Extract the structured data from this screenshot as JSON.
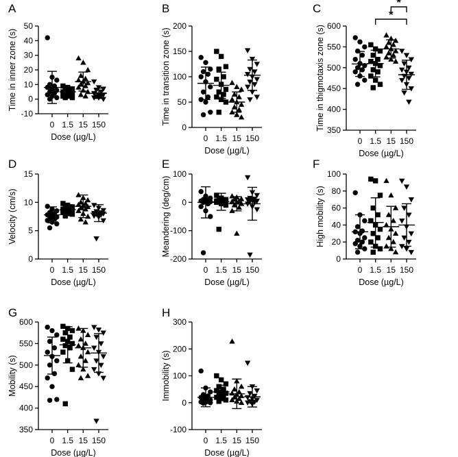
{
  "chart_data": [
    {
      "type": "scatter",
      "panel_label": "A",
      "xlabel": "Dose (µg/L)",
      "ylabel": "Time in inner zone (s)",
      "categories": [
        "0",
        "1.5",
        "15",
        "150"
      ],
      "ylim": [
        -10,
        50
      ],
      "yticks": [
        "-10",
        "0",
        "10",
        "20",
        "30",
        "40",
        "50"
      ],
      "marker_shapes": [
        "circle",
        "square",
        "triangle-up",
        "triangle-down"
      ],
      "points": [
        [
          42,
          15,
          13,
          10,
          9,
          8,
          7,
          6,
          5,
          4,
          3,
          2,
          1,
          0
        ],
        [
          9,
          8,
          7,
          6,
          5,
          5,
          4,
          4,
          3,
          3,
          2,
          2,
          1,
          1
        ],
        [
          28,
          25,
          20,
          16,
          14,
          13,
          12,
          11,
          10,
          9,
          8,
          6,
          5,
          3,
          2
        ],
        [
          12,
          8,
          7,
          6,
          5,
          4,
          3,
          3,
          2,
          2,
          1,
          1,
          0
        ]
      ],
      "mean": [
        8,
        5,
        12,
        4
      ],
      "sd": [
        11,
        3.5,
        6.5,
        3.5
      ]
    },
    {
      "type": "scatter",
      "panel_label": "B",
      "xlabel": "Dose (µg/L)",
      "ylabel": "Time in transition zone (s)",
      "categories": [
        "0",
        "1.5",
        "15",
        "150"
      ],
      "ylim": [
        0,
        200
      ],
      "yticks": [
        "0",
        "50",
        "100",
        "150",
        "200"
      ],
      "marker_shapes": [
        "circle",
        "square",
        "triangle-up",
        "triangle-down"
      ],
      "points": [
        [
          138,
          128,
          115,
          110,
          105,
          100,
          90,
          80,
          70,
          60,
          55,
          50,
          30,
          25
        ],
        [
          150,
          140,
          120,
          115,
          100,
          95,
          85,
          75,
          70,
          65,
          60,
          55,
          50,
          30
        ],
        [
          88,
          80,
          75,
          65,
          60,
          55,
          50,
          45,
          40,
          35,
          30,
          25,
          20
        ],
        [
          152,
          135,
          125,
          115,
          110,
          105,
          100,
          95,
          90,
          85,
          80,
          70,
          60,
          55
        ]
      ],
      "mean": [
        87,
        83,
        50,
        103
      ],
      "sd": [
        32,
        26,
        20,
        30
      ]
    },
    {
      "type": "scatter",
      "panel_label": "C",
      "xlabel": "Dose (µg/L)",
      "ylabel": "Time in thigmotaxis zone (s)",
      "categories": [
        "0",
        "1.5",
        "15",
        "150"
      ],
      "ylim": [
        350,
        600
      ],
      "yticks": [
        "350",
        "400",
        "450",
        "500",
        "550",
        "600"
      ],
      "marker_shapes": [
        "circle",
        "square",
        "triangle-up",
        "triangle-down"
      ],
      "points": [
        [
          572,
          562,
          550,
          540,
          530,
          520,
          510,
          505,
          500,
          495,
          490,
          480,
          470,
          460
        ],
        [
          555,
          545,
          540,
          530,
          520,
          515,
          510,
          505,
          495,
          490,
          480,
          470,
          460,
          452
        ],
        [
          578,
          570,
          565,
          560,
          555,
          550,
          545,
          540,
          535,
          530,
          525,
          520,
          515
        ],
        [
          540,
          530,
          520,
          510,
          500,
          495,
          490,
          485,
          480,
          475,
          470,
          460,
          450,
          440,
          418
        ]
      ],
      "mean": [
        509,
        510,
        545,
        483
      ],
      "sd": [
        30,
        32,
        22,
        35
      ],
      "annotations": [
        {
          "text": "*",
          "from": "1.5",
          "to": "150"
        },
        {
          "text": "*",
          "from": "15",
          "to": "150"
        }
      ]
    },
    {
      "type": "scatter",
      "panel_label": "D",
      "xlabel": "Dose (µg/L)",
      "ylabel": "Velocity (cm/s)",
      "categories": [
        "0",
        "1.5",
        "15",
        "150"
      ],
      "ylim": [
        0,
        15
      ],
      "yticks": [
        "0",
        "5",
        "10",
        "15"
      ],
      "marker_shapes": [
        "circle",
        "square",
        "triangle-up",
        "triangle-down"
      ],
      "points": [
        [
          9.3,
          8.8,
          8.5,
          8.2,
          8.0,
          7.8,
          7.6,
          7.4,
          7.2,
          7.0,
          6.8,
          6.5,
          6.2,
          5.5
        ],
        [
          9.8,
          9.5,
          9.2,
          9.0,
          8.9,
          8.8,
          8.7,
          8.6,
          8.5,
          8.4,
          8.2,
          8.0,
          7.9,
          7.6
        ],
        [
          11.3,
          10.8,
          10.4,
          10.0,
          9.8,
          9.6,
          9.4,
          9.2,
          9.0,
          8.8,
          8.5,
          8.0,
          7.5,
          7.0,
          6.5
        ],
        [
          9.5,
          9.0,
          8.6,
          8.4,
          8.2,
          8.1,
          8.0,
          8.0,
          7.9,
          7.8,
          7.6,
          7.4,
          6.8,
          3.6
        ]
      ],
      "mean": [
        7.8,
        8.7,
        9.3,
        8.1
      ],
      "sd": [
        1.4,
        0.9,
        2.0,
        1.5
      ]
    },
    {
      "type": "scatter",
      "panel_label": "E",
      "xlabel": "Dose (µg/L)",
      "ylabel": "Meandering (deg/cm)",
      "categories": [
        "0",
        "1.5",
        "15",
        "150"
      ],
      "ylim": [
        -200,
        100
      ],
      "yticks": [
        "-200",
        "-100",
        "0",
        "100"
      ],
      "marker_shapes": [
        "circle",
        "square",
        "triangle-up",
        "triangle-down"
      ],
      "points": [
        [
          38,
          22,
          15,
          10,
          8,
          5,
          3,
          2,
          0,
          -5,
          -15,
          -30,
          -50,
          -178
        ],
        [
          25,
          15,
          10,
          8,
          6,
          5,
          4,
          3,
          2,
          1,
          0,
          -5,
          -10,
          -95
        ],
        [
          22,
          18,
          12,
          10,
          5,
          3,
          0,
          -5,
          -10,
          -18,
          -30,
          -110
        ],
        [
          88,
          35,
          25,
          15,
          12,
          10,
          8,
          5,
          3,
          0,
          -5,
          -15,
          -25,
          -185
        ]
      ],
      "mean": [
        0,
        2,
        -5,
        -5
      ],
      "sd": [
        55,
        30,
        25,
        58
      ]
    },
    {
      "type": "scatter",
      "panel_label": "F",
      "xlabel": "Dose (µg/L)",
      "ylabel": "High mobility  (s)",
      "categories": [
        "0",
        "1.5",
        "15",
        "150"
      ],
      "ylim": [
        0,
        100
      ],
      "yticks": [
        "0",
        "20",
        "40",
        "60",
        "80",
        "100"
      ],
      "marker_shapes": [
        "circle",
        "square",
        "triangle-up",
        "triangle-down"
      ],
      "points": [
        [
          78,
          52,
          45,
          38,
          33,
          32,
          30,
          25,
          22,
          20,
          18,
          15,
          12,
          8
        ],
        [
          94,
          92,
          75,
          60,
          52,
          45,
          40,
          35,
          30,
          25,
          20,
          15,
          12,
          8
        ],
        [
          92,
          75,
          60,
          52,
          45,
          40,
          35,
          30,
          25,
          20,
          15,
          12,
          8
        ],
        [
          92,
          85,
          70,
          60,
          52,
          45,
          38,
          30,
          25,
          20,
          15,
          12,
          8
        ]
      ],
      "mean": [
        32,
        43,
        38,
        40
      ],
      "sd": [
        20,
        29,
        24,
        25
      ]
    },
    {
      "type": "scatter",
      "panel_label": "G",
      "xlabel": "Dose (µg/L)",
      "ylabel": "Mobility (s)",
      "categories": [
        "0",
        "1.5",
        "15",
        "150"
      ],
      "ylim": [
        350,
        600
      ],
      "yticks": [
        "350",
        "400",
        "450",
        "500",
        "550",
        "600"
      ],
      "marker_shapes": [
        "circle",
        "square",
        "triangle-up",
        "triangle-down"
      ],
      "points": [
        [
          588,
          580,
          570,
          555,
          540,
          530,
          520,
          510,
          500,
          480,
          470,
          450,
          420,
          418
        ],
        [
          590,
          585,
          580,
          575,
          565,
          560,
          555,
          550,
          545,
          540,
          530,
          510,
          490,
          410
        ],
        [
          585,
          580,
          570,
          560,
          550,
          545,
          540,
          530,
          520,
          510,
          500,
          490,
          475,
          470
        ],
        [
          588,
          582,
          575,
          565,
          550,
          540,
          530,
          520,
          510,
          500,
          490,
          480,
          470,
          370
        ]
      ],
      "mean": [
        522,
        547,
        540,
        528
      ],
      "sd": [
        43,
        42,
        45,
        45
      ]
    },
    {
      "type": "scatter",
      "panel_label": "H",
      "xlabel": "Dose (µg/L)",
      "ylabel": "Immobility (s)",
      "categories": [
        "0",
        "1.5",
        "15",
        "150"
      ],
      "ylim": [
        -100,
        300
      ],
      "yticks": [
        "-100",
        "0",
        "100",
        "200",
        "300"
      ],
      "marker_shapes": [
        "circle",
        "square",
        "triangle-up",
        "triangle-down"
      ],
      "points": [
        [
          118,
          55,
          40,
          30,
          25,
          20,
          15,
          10,
          8,
          5,
          3,
          2,
          0,
          -2
        ],
        [
          100,
          85,
          70,
          60,
          50,
          45,
          40,
          35,
          30,
          25,
          20,
          15,
          10,
          5
        ],
        [
          228,
          80,
          60,
          50,
          40,
          35,
          30,
          25,
          20,
          15,
          10,
          5,
          0
        ],
        [
          148,
          60,
          45,
          35,
          25,
          20,
          15,
          10,
          5,
          3,
          0,
          -5
        ]
      ],
      "mean": [
        20,
        40,
        33,
        22
      ],
      "sd": [
        35,
        25,
        55,
        38
      ]
    }
  ]
}
